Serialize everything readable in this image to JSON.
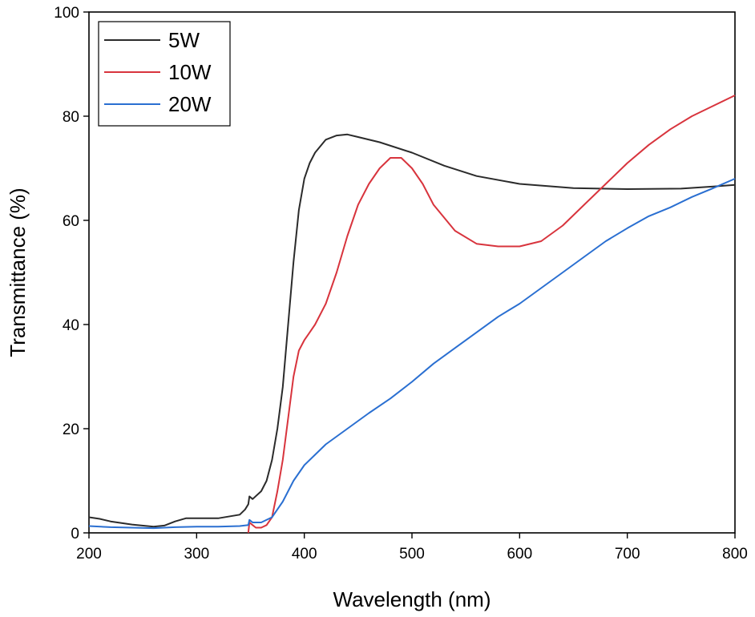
{
  "chart_data": {
    "type": "line",
    "xlabel": "Wavelength (nm)",
    "ylabel": "Transmittance (%)",
    "xlim": [
      200,
      800
    ],
    "ylim": [
      0,
      100
    ],
    "xticks": [
      200,
      300,
      400,
      500,
      600,
      700,
      800
    ],
    "yticks": [
      0,
      20,
      40,
      60,
      80,
      100
    ],
    "legend_position": "top-left",
    "grid": false,
    "series": [
      {
        "name": "5W",
        "color": "#2b2b2b",
        "x": [
          200,
          210,
          220,
          240,
          260,
          270,
          280,
          290,
          300,
          320,
          340,
          345,
          348,
          349,
          352,
          360,
          365,
          370,
          375,
          380,
          385,
          390,
          395,
          400,
          405,
          410,
          420,
          430,
          440,
          450,
          470,
          500,
          530,
          560,
          600,
          650,
          700,
          750,
          780,
          800
        ],
        "y": [
          3,
          2.7,
          2.2,
          1.6,
          1.2,
          1.4,
          2.2,
          2.8,
          2.8,
          2.8,
          3.5,
          4.5,
          5.5,
          7,
          6.5,
          8,
          10,
          14,
          20,
          28,
          40,
          52,
          62,
          68,
          71,
          73,
          75.5,
          76.3,
          76.5,
          76,
          75,
          73,
          70.5,
          68.5,
          67,
          66.2,
          66,
          66.1,
          66.5,
          66.8
        ]
      },
      {
        "name": "10W",
        "color": "#d8343d",
        "x": [
          348,
          349,
          352,
          355,
          360,
          365,
          370,
          375,
          380,
          385,
          390,
          395,
          400,
          405,
          410,
          420,
          430,
          440,
          450,
          460,
          470,
          480,
          490,
          500,
          510,
          520,
          540,
          560,
          580,
          600,
          620,
          640,
          660,
          680,
          700,
          720,
          740,
          760,
          780,
          800
        ],
        "y": [
          0,
          2,
          1.5,
          1,
          1,
          1.5,
          3,
          8,
          14,
          22,
          30,
          35,
          37,
          38.5,
          40,
          44,
          50,
          57,
          63,
          67,
          70,
          72,
          72,
          70,
          67,
          63,
          58,
          55.5,
          55,
          55,
          56,
          59,
          63,
          67,
          71,
          74.5,
          77.5,
          80,
          82,
          84
        ]
      },
      {
        "name": "20W",
        "color": "#2a6fd1",
        "x": [
          200,
          220,
          240,
          260,
          280,
          300,
          320,
          340,
          348,
          349,
          352,
          360,
          370,
          380,
          390,
          400,
          410,
          420,
          440,
          460,
          480,
          500,
          520,
          540,
          560,
          580,
          600,
          620,
          640,
          660,
          680,
          700,
          720,
          740,
          760,
          780,
          800
        ],
        "y": [
          1.3,
          1.1,
          1.0,
          0.9,
          1.1,
          1.2,
          1.2,
          1.3,
          1.5,
          2.5,
          2,
          2,
          3,
          6,
          10,
          13,
          15,
          17,
          20,
          23,
          25.8,
          29,
          32.5,
          35.5,
          38.5,
          41.5,
          44,
          47,
          50,
          53,
          56,
          58.5,
          60.8,
          62.5,
          64.5,
          66.2,
          68
        ]
      }
    ]
  }
}
